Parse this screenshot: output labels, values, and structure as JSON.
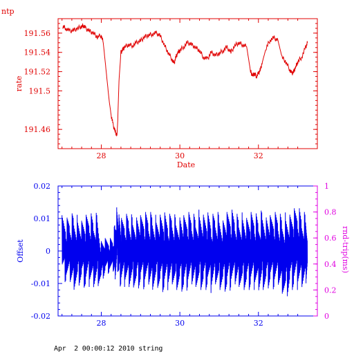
{
  "app_label": "ntp",
  "footer": "Apr  2 00:00:12 2010 string",
  "colors": {
    "rate": "#e00000",
    "offset": "#0000ee",
    "roundtrip_axis": "#e000e0",
    "frame": "#000000"
  },
  "chart_data": [
    {
      "type": "line",
      "title": "",
      "xlabel": "Date",
      "ylabel": "rate",
      "xlim": [
        26.9,
        33.5
      ],
      "ylim": [
        191.44,
        191.575
      ],
      "x_ticks": [
        28,
        30,
        32
      ],
      "x_tick_labels": [
        "28",
        "30",
        "32"
      ],
      "y_ticks": [
        191.46,
        191.5,
        191.52,
        191.54,
        191.56
      ],
      "y_tick_labels": [
        "191.46",
        "191.5",
        "191.52",
        "191.54",
        "191.56"
      ],
      "grid": false,
      "series": [
        {
          "name": "",
          "x": [
            27.02,
            27.1,
            27.2,
            27.3,
            27.4,
            27.5,
            27.55,
            27.6,
            27.7,
            27.8,
            27.9,
            28.0,
            28.05,
            28.1,
            28.15,
            28.2,
            28.25,
            28.3,
            28.35,
            28.4,
            28.42,
            28.45,
            28.5,
            28.55,
            28.6,
            28.7,
            28.8,
            28.9,
            29.0,
            29.1,
            29.2,
            29.3,
            29.4,
            29.5,
            29.6,
            29.7,
            29.8,
            29.85,
            29.9,
            29.95,
            30.0,
            30.1,
            30.2,
            30.3,
            30.4,
            30.5,
            30.6,
            30.7,
            30.8,
            30.9,
            31.0,
            31.1,
            31.2,
            31.3,
            31.4,
            31.5,
            31.6,
            31.7,
            31.8,
            31.85,
            31.9,
            31.95,
            32.0,
            32.05,
            32.1,
            32.2,
            32.3,
            32.4,
            32.5,
            32.6,
            32.7,
            32.8,
            32.85,
            32.9,
            32.95,
            33.0,
            33.1,
            33.2,
            33.25
          ],
          "y": [
            191.567,
            191.565,
            191.562,
            191.563,
            191.565,
            191.567,
            191.568,
            191.565,
            191.562,
            191.56,
            191.556,
            191.558,
            191.55,
            191.53,
            191.51,
            191.49,
            191.475,
            191.465,
            191.458,
            191.454,
            191.47,
            191.51,
            191.54,
            191.543,
            191.546,
            191.548,
            191.547,
            191.55,
            191.552,
            191.556,
            191.558,
            191.559,
            191.56,
            191.557,
            191.548,
            191.54,
            191.533,
            191.528,
            191.535,
            191.54,
            191.542,
            191.546,
            191.55,
            191.548,
            191.545,
            191.542,
            191.535,
            191.533,
            191.54,
            191.537,
            191.539,
            191.542,
            191.545,
            191.54,
            191.547,
            191.55,
            191.548,
            191.546,
            191.52,
            191.516,
            191.518,
            191.515,
            191.518,
            191.522,
            191.53,
            191.545,
            191.553,
            191.555,
            191.552,
            191.535,
            191.53,
            191.522,
            191.518,
            191.52,
            191.525,
            191.53,
            191.535,
            191.545,
            191.55
          ]
        }
      ]
    },
    {
      "type": "line",
      "title": "",
      "xlabel": "",
      "ylabel": "Offset",
      "y2label": "rnd-trip(ms)",
      "xlim": [
        26.9,
        33.5
      ],
      "ylim": [
        -0.02,
        0.02
      ],
      "y2lim": [
        0,
        1
      ],
      "x_ticks": [
        28,
        30,
        32
      ],
      "x_tick_labels": [
        "28",
        "30",
        "32"
      ],
      "y_ticks": [
        -0.02,
        -0.01,
        0,
        0.01,
        0.02
      ],
      "y_tick_labels": [
        "-0.02",
        "-0.01",
        "0",
        "0.01",
        "0.02"
      ],
      "y2_ticks": [
        0,
        0.2,
        0.4,
        0.6,
        0.8,
        1
      ],
      "y2_tick_labels": [
        "0",
        "0.2",
        "0.4",
        "0.6",
        "0.8",
        "1"
      ],
      "grid": false,
      "series": [
        {
          "name": "",
          "x": [
            27.0,
            27.1,
            27.2,
            27.3,
            27.4,
            27.5,
            27.6,
            27.7,
            27.8,
            27.9,
            28.0,
            28.1,
            28.2,
            28.3,
            28.35,
            28.4,
            28.45,
            28.5,
            28.6,
            28.7,
            28.8,
            28.9,
            29.0,
            29.1,
            29.2,
            29.3,
            29.4,
            29.5,
            29.6,
            29.7,
            29.8,
            29.9,
            30.0,
            30.1,
            30.2,
            30.3,
            30.4,
            30.5,
            30.6,
            30.7,
            30.8,
            30.9,
            31.0,
            31.1,
            31.2,
            31.3,
            31.4,
            31.5,
            31.6,
            31.7,
            31.8,
            31.9,
            32.0,
            32.1,
            32.2,
            32.3,
            32.4,
            32.5,
            32.6,
            32.7,
            32.8,
            32.9,
            33.0,
            33.1,
            33.2,
            33.25
          ],
          "min": [
            -0.008,
            -0.01,
            -0.011,
            -0.012,
            -0.011,
            -0.01,
            -0.012,
            -0.011,
            -0.012,
            -0.011,
            -0.01,
            -0.007,
            -0.007,
            -0.007,
            -0.009,
            -0.005,
            -0.009,
            -0.012,
            -0.011,
            -0.012,
            -0.011,
            -0.012,
            -0.011,
            -0.012,
            -0.012,
            -0.012,
            -0.011,
            -0.012,
            -0.013,
            -0.012,
            -0.011,
            -0.012,
            -0.012,
            -0.013,
            -0.012,
            -0.012,
            -0.011,
            -0.012,
            -0.012,
            -0.012,
            -0.013,
            -0.011,
            -0.012,
            -0.012,
            -0.013,
            -0.012,
            -0.012,
            -0.011,
            -0.012,
            -0.012,
            -0.012,
            -0.012,
            -0.013,
            -0.012,
            -0.012,
            -0.011,
            -0.012,
            -0.012,
            -0.013,
            -0.015,
            -0.012,
            -0.012,
            -0.012,
            -0.012,
            -0.011,
            -0.006
          ],
          "max": [
            0.011,
            0.01,
            0.011,
            0.012,
            0.011,
            0.01,
            0.011,
            0.012,
            0.011,
            0.012,
            0.004,
            0.004,
            0.004,
            0.004,
            0.01,
            0.014,
            0.012,
            0.01,
            0.011,
            0.012,
            0.011,
            0.012,
            0.011,
            0.012,
            0.012,
            0.012,
            0.011,
            0.012,
            0.012,
            0.011,
            0.012,
            0.011,
            0.012,
            0.011,
            0.012,
            0.012,
            0.011,
            0.013,
            0.012,
            0.012,
            0.011,
            0.012,
            0.012,
            0.011,
            0.012,
            0.013,
            0.012,
            0.011,
            0.012,
            0.011,
            0.012,
            0.012,
            0.011,
            0.013,
            0.012,
            0.011,
            0.012,
            0.012,
            0.011,
            0.012,
            0.012,
            0.013,
            0.014,
            0.012,
            0.012,
            0.008
          ]
        }
      ]
    }
  ]
}
